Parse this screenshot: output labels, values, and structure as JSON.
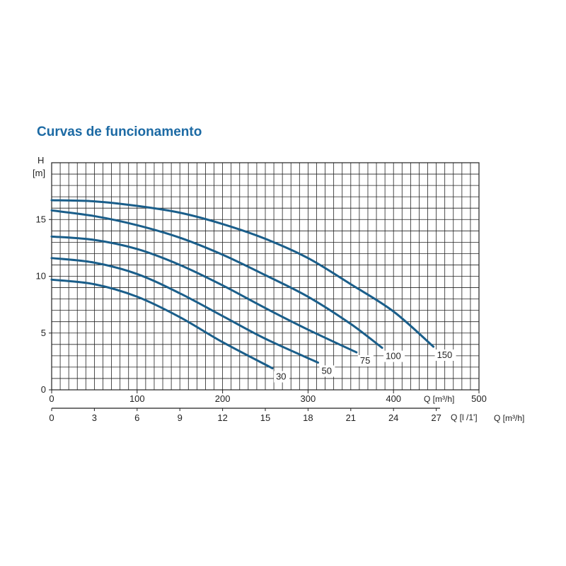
{
  "title": "Curvas de funcionamento",
  "chart_data": {
    "type": "line",
    "title": "Curvas de funcionamento",
    "ylabel_line1": "H",
    "ylabel_line2": "[m]",
    "xlabel_top": "Q [m³/h]",
    "xlabel_bottom": "Q [l /1']",
    "xlabel_bottom_outer": "Q [m³/h]",
    "x_top_ticks": [
      "0",
      "100",
      "200",
      "300",
      "400",
      "500"
    ],
    "x_bottom_ticks": [
      "0",
      "3",
      "6",
      "9",
      "12",
      "15",
      "18",
      "21",
      "24",
      "27"
    ],
    "y_ticks": [
      "0",
      "5",
      "10",
      "15"
    ],
    "xlim_bottom": [
      0,
      30
    ],
    "ylim": [
      0,
      20
    ],
    "grid": true,
    "series": [
      {
        "name": "30",
        "x": [
          0,
          3,
          6,
          9,
          12,
          15.5
        ],
        "y": [
          9.7,
          9.3,
          8.2,
          6.4,
          4.2,
          1.9
        ]
      },
      {
        "name": "50",
        "x": [
          0,
          3,
          6,
          9,
          12,
          15,
          18.7
        ],
        "y": [
          11.6,
          11.2,
          10.2,
          8.5,
          6.5,
          4.5,
          2.4
        ]
      },
      {
        "name": "75",
        "x": [
          0,
          3,
          6,
          9,
          12,
          15,
          18,
          21.4
        ],
        "y": [
          13.5,
          13.2,
          12.4,
          11.0,
          9.2,
          7.2,
          5.3,
          3.3
        ]
      },
      {
        "name": "100",
        "x": [
          0,
          3,
          6,
          9,
          12,
          15,
          18,
          21,
          23.2
        ],
        "y": [
          15.8,
          15.3,
          14.5,
          13.4,
          11.9,
          10.1,
          8.2,
          5.8,
          3.7
        ]
      },
      {
        "name": "150",
        "x": [
          0,
          3,
          6,
          9,
          12,
          15,
          18,
          21,
          24,
          26.8
        ],
        "y": [
          16.7,
          16.6,
          16.2,
          15.6,
          14.6,
          13.3,
          11.6,
          9.3,
          6.9,
          3.8
        ]
      }
    ]
  },
  "style": {
    "curve_color": "#1a5e8a",
    "grid_color": "#222222"
  }
}
